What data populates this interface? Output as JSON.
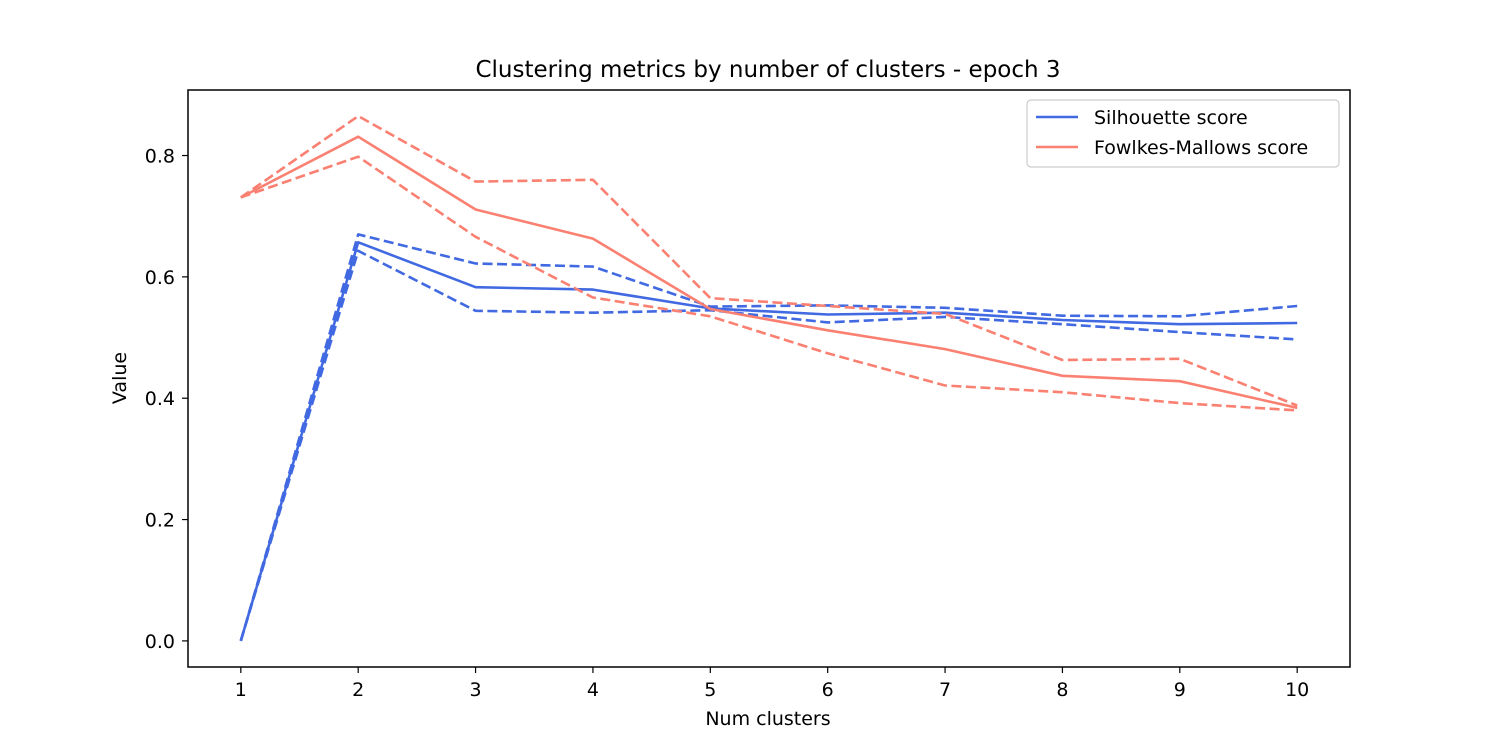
{
  "chart_data": {
    "type": "line",
    "title": "Clustering metrics by number of clusters - epoch 3",
    "xlabel": "Num clusters",
    "ylabel": "Value",
    "xlim": [
      0.55,
      10.45
    ],
    "ylim": [
      -0.043,
      0.908
    ],
    "x": [
      1,
      2,
      3,
      4,
      5,
      6,
      7,
      8,
      9,
      10
    ],
    "xticks": [
      1,
      2,
      3,
      4,
      5,
      6,
      7,
      8,
      9,
      10
    ],
    "yticks": [
      0.0,
      0.2,
      0.4,
      0.6,
      0.8
    ],
    "ytick_labels": [
      "0.0",
      "0.2",
      "0.4",
      "0.6",
      "0.8"
    ],
    "grid": false,
    "legend_position": "top-right",
    "series": [
      {
        "name": "Silhouette score",
        "color": "#4169e1",
        "style": "solid",
        "values": [
          0.0,
          0.657,
          0.583,
          0.579,
          0.548,
          0.538,
          0.541,
          0.529,
          0.522,
          0.524
        ]
      },
      {
        "name": "",
        "color": "#4169e1",
        "style": "dashed",
        "values": [
          0.0,
          0.67,
          0.622,
          0.617,
          0.551,
          0.553,
          0.549,
          0.536,
          0.535,
          0.552
        ]
      },
      {
        "name": "",
        "color": "#4169e1",
        "style": "dashed",
        "values": [
          0.0,
          0.643,
          0.544,
          0.541,
          0.545,
          0.525,
          0.534,
          0.522,
          0.509,
          0.497
        ]
      },
      {
        "name": "Fowlkes-Mallows score",
        "color": "#fa8072",
        "style": "solid",
        "values": [
          0.731,
          0.831,
          0.711,
          0.663,
          0.547,
          0.512,
          0.481,
          0.437,
          0.428,
          0.384
        ]
      },
      {
        "name": "",
        "color": "#fa8072",
        "style": "dashed",
        "values": [
          0.731,
          0.865,
          0.757,
          0.76,
          0.565,
          0.552,
          0.539,
          0.463,
          0.465,
          0.388
        ]
      },
      {
        "name": "",
        "color": "#fa8072",
        "style": "dashed",
        "values": [
          0.731,
          0.798,
          0.666,
          0.566,
          0.535,
          0.474,
          0.421,
          0.41,
          0.392,
          0.38
        ]
      }
    ]
  }
}
